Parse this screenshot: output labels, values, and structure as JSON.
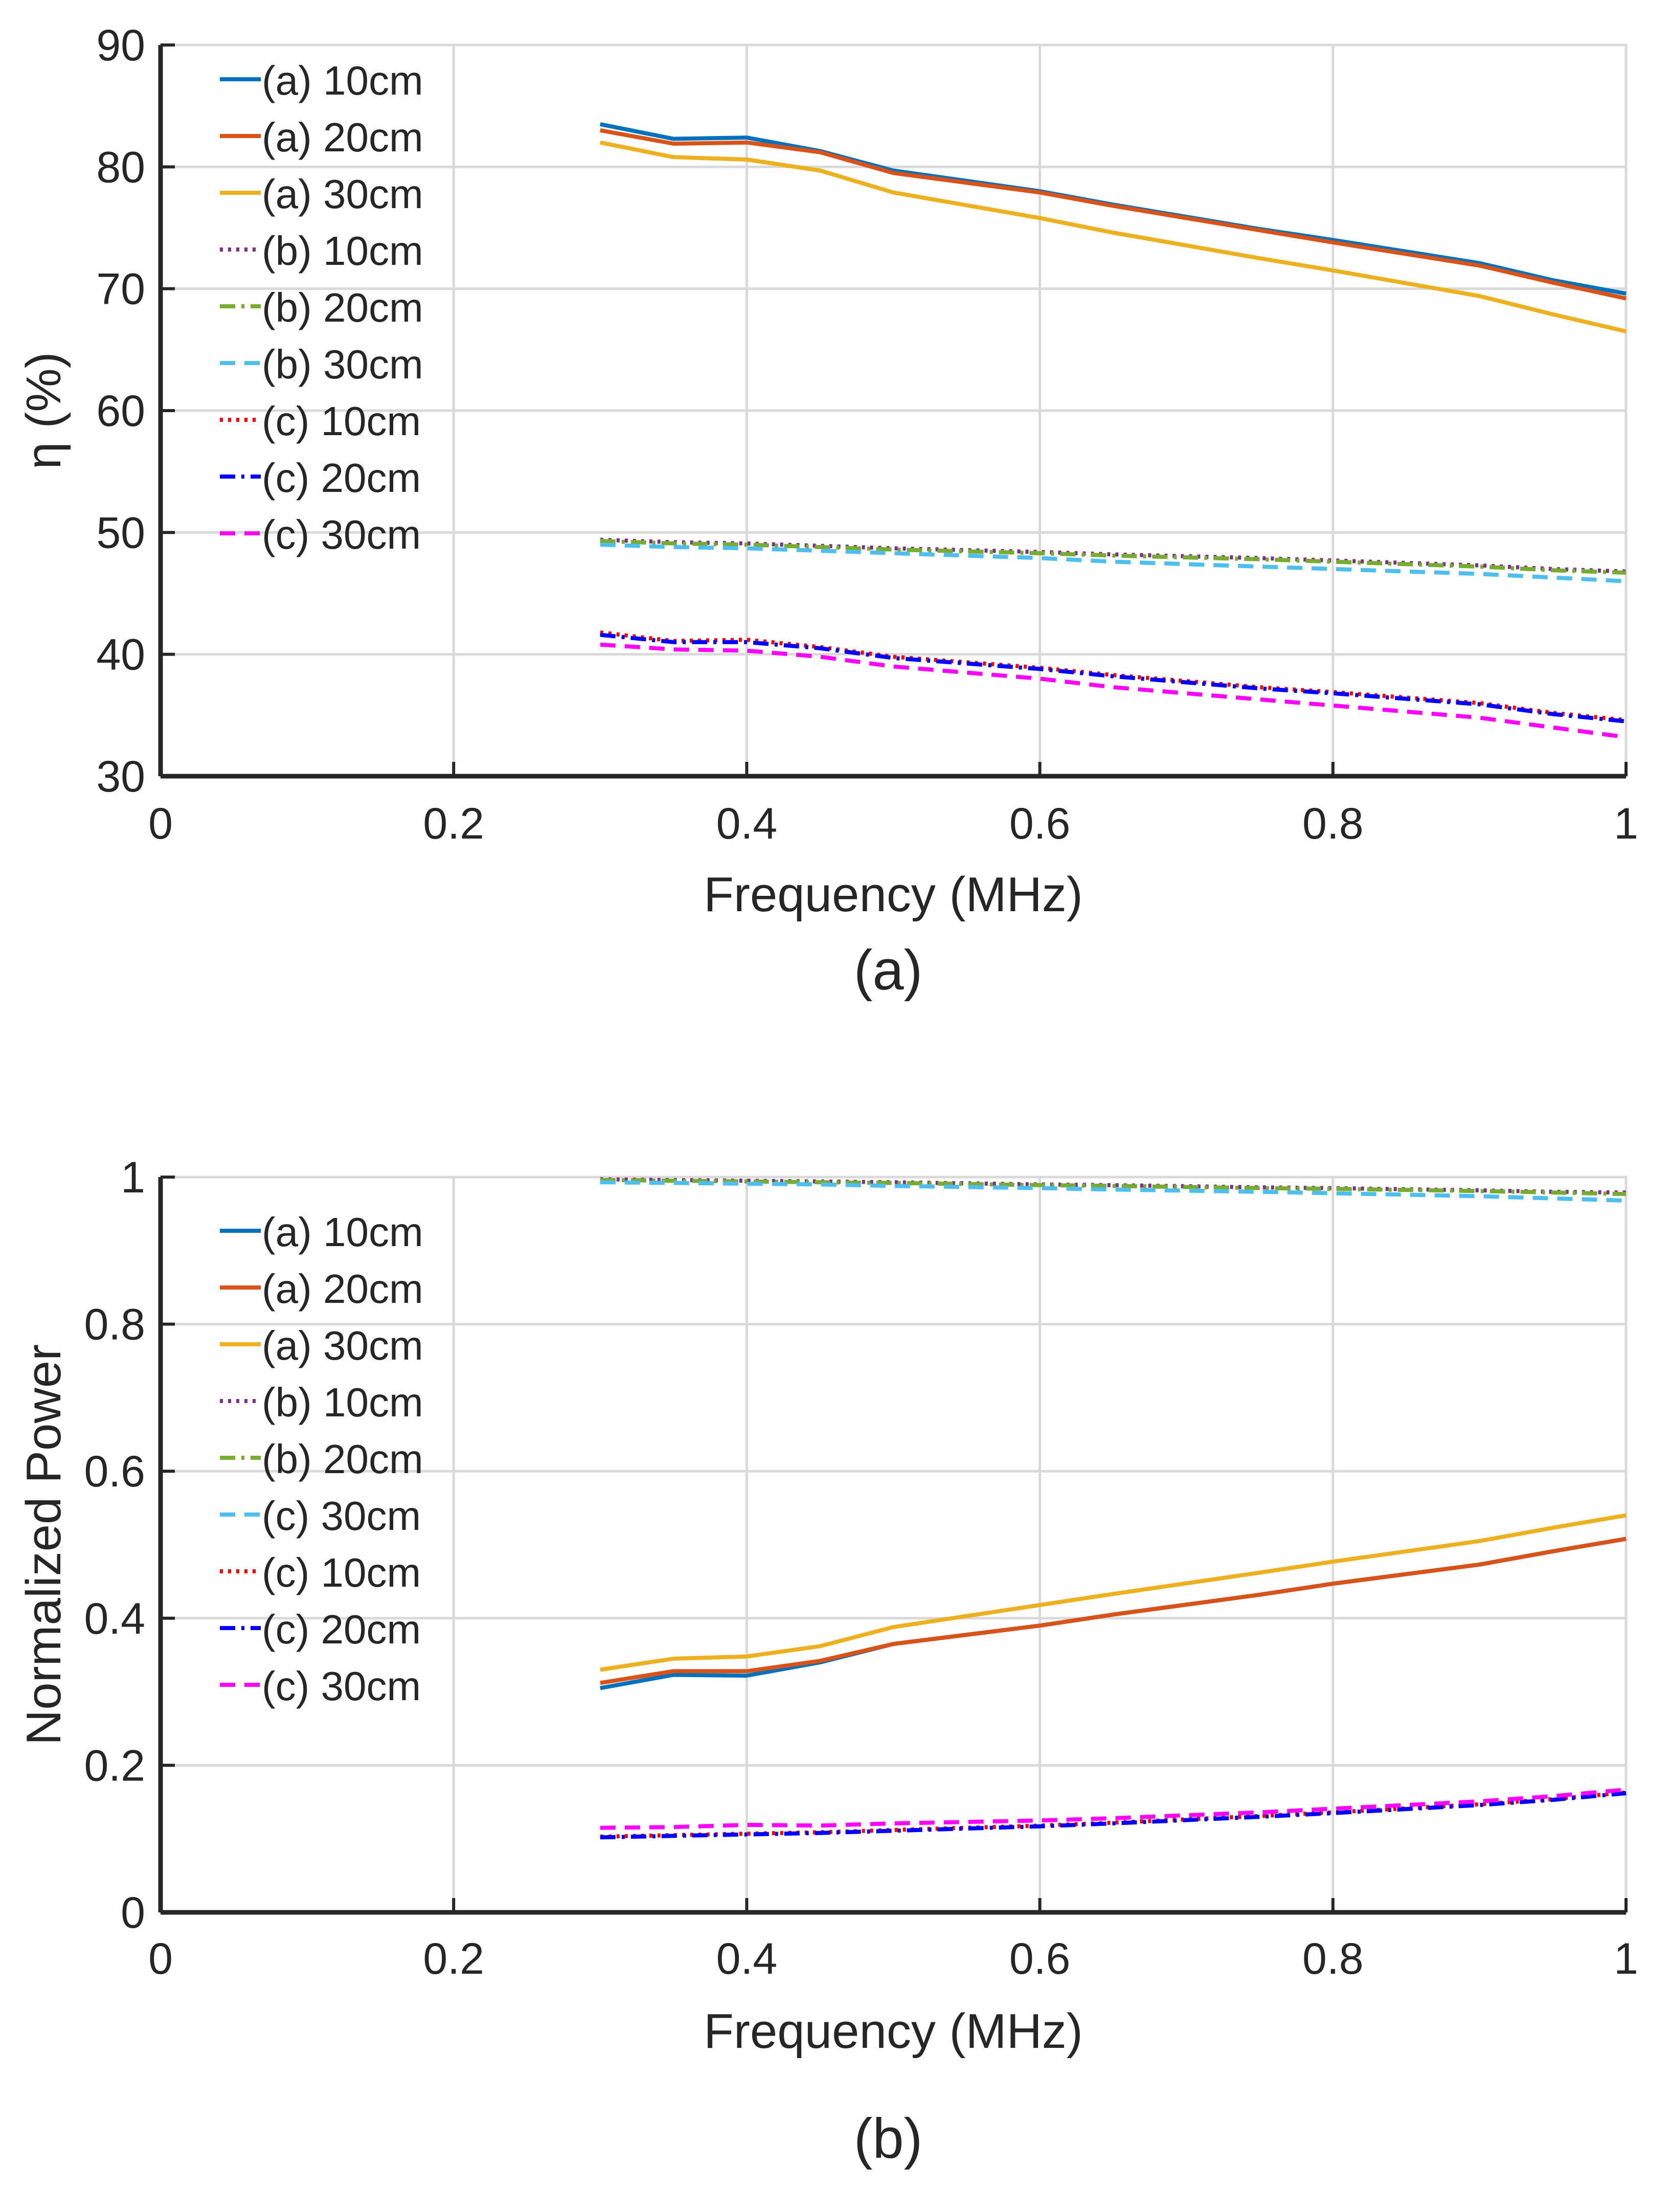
{
  "chart_data": [
    {
      "type": "line",
      "panel_label": "(a)",
      "xlabel": "Frequency (MHz)",
      "ylabel": "η (%)",
      "xlim": [
        0,
        1
      ],
      "ylim": [
        30,
        90
      ],
      "xticks": [
        "0",
        "0.2",
        "0.4",
        "0.6",
        "0.8",
        "1"
      ],
      "yticks": [
        "30",
        "40",
        "50",
        "60",
        "70",
        "80",
        "90"
      ],
      "grid": true,
      "legend_position": "top-left",
      "x": [
        0.3,
        0.35,
        0.4,
        0.45,
        0.5,
        0.6,
        0.65,
        0.75,
        0.8,
        0.9,
        0.95,
        1.0
      ],
      "series": [
        {
          "name": "(a) 10cm",
          "color": "#0072BD",
          "dash": "solid",
          "values": [
            83.5,
            82.3,
            82.4,
            81.3,
            79.7,
            78.0,
            76.9,
            74.9,
            74.0,
            72.1,
            70.7,
            69.6
          ]
        },
        {
          "name": " (a) 20cm",
          "color": "#D95319",
          "dash": "solid",
          "values": [
            83.0,
            81.9,
            82.0,
            81.2,
            79.5,
            77.9,
            76.8,
            74.8,
            73.8,
            71.9,
            70.5,
            69.2
          ]
        },
        {
          "name": "(a) 30cm",
          "color": "#EDB120",
          "dash": "solid",
          "values": [
            82.0,
            80.8,
            80.6,
            79.7,
            77.9,
            75.8,
            74.6,
            72.5,
            71.5,
            69.4,
            67.9,
            66.5
          ]
        },
        {
          "name": "(b) 10cm",
          "color": "#7E2F8E",
          "dash": "dot",
          "values": [
            49.4,
            49.2,
            49.1,
            48.9,
            48.7,
            48.4,
            48.2,
            47.9,
            47.7,
            47.3,
            47.0,
            46.8
          ]
        },
        {
          "name": " (b) 20cm",
          "color": "#77AC30",
          "dash": "dashdot",
          "values": [
            49.3,
            49.1,
            49.0,
            48.8,
            48.6,
            48.3,
            48.1,
            47.8,
            47.6,
            47.2,
            46.9,
            46.7
          ]
        },
        {
          "name": "(b) 30cm",
          "color": "#4DBEEE",
          "dash": "dash",
          "values": [
            49.0,
            48.8,
            48.7,
            48.5,
            48.3,
            47.9,
            47.6,
            47.2,
            47.0,
            46.6,
            46.3,
            46.0
          ]
        },
        {
          "name": "(c) 10cm",
          "color": "#FF0000",
          "dash": "dot",
          "values": [
            41.8,
            41.1,
            41.2,
            40.6,
            39.8,
            38.9,
            38.3,
            37.3,
            36.9,
            36.0,
            35.2,
            34.6
          ]
        },
        {
          "name": "(c) 20cm",
          "color": "#0000FF",
          "dash": "dashdot",
          "values": [
            41.6,
            41.0,
            41.0,
            40.5,
            39.7,
            38.8,
            38.2,
            37.2,
            36.8,
            35.9,
            35.1,
            34.5
          ]
        },
        {
          "name": "(c) 30cm",
          "color": "#FF00FF",
          "dash": "dash",
          "values": [
            40.8,
            40.4,
            40.3,
            39.8,
            39.0,
            38.0,
            37.3,
            36.3,
            35.8,
            34.8,
            34.0,
            33.2
          ]
        }
      ]
    },
    {
      "type": "line",
      "panel_label": "(b)",
      "xlabel": "Frequency (MHz)",
      "ylabel": "Normalized Power",
      "xlim": [
        0,
        1
      ],
      "ylim": [
        0,
        1
      ],
      "xticks": [
        "0",
        "0.2",
        "0.4",
        "0.6",
        "0.8",
        "1"
      ],
      "yticks": [
        "0",
        "0.2",
        "0.4",
        "0.6",
        "0.8",
        "1"
      ],
      "grid": true,
      "legend_position": "top-left",
      "x": [
        0.3,
        0.35,
        0.4,
        0.45,
        0.5,
        0.6,
        0.65,
        0.75,
        0.8,
        0.9,
        0.95,
        1.0
      ],
      "series": [
        {
          "name": "(a) 10cm",
          "color": "#0072BD",
          "dash": "solid",
          "values": [
            0.305,
            0.323,
            0.322,
            0.34,
            0.365,
            0.39,
            0.405,
            0.432,
            0.447,
            0.473,
            0.491,
            0.508
          ]
        },
        {
          "name": " (a) 20cm",
          "color": "#D95319",
          "dash": "solid",
          "values": [
            0.312,
            0.328,
            0.328,
            0.342,
            0.365,
            0.39,
            0.405,
            0.432,
            0.447,
            0.473,
            0.491,
            0.508
          ]
        },
        {
          "name": "(a) 30cm",
          "color": "#EDB120",
          "dash": "solid",
          "values": [
            0.33,
            0.345,
            0.348,
            0.362,
            0.388,
            0.418,
            0.433,
            0.462,
            0.477,
            0.505,
            0.523,
            0.54
          ]
        },
        {
          "name": "(b) 10cm",
          "color": "#7E2F8E",
          "dash": "dot",
          "values": [
            0.997,
            0.996,
            0.995,
            0.994,
            0.993,
            0.99,
            0.989,
            0.986,
            0.985,
            0.982,
            0.98,
            0.979
          ]
        },
        {
          "name": " (b) 20cm",
          "color": "#77AC30",
          "dash": "dashdot",
          "values": [
            0.996,
            0.995,
            0.994,
            0.993,
            0.992,
            0.989,
            0.988,
            0.985,
            0.984,
            0.981,
            0.979,
            0.977
          ]
        },
        {
          "name": "(c) 30cm",
          "color": "#4DBEEE",
          "dash": "dash",
          "values": [
            0.993,
            0.992,
            0.991,
            0.99,
            0.988,
            0.985,
            0.983,
            0.98,
            0.978,
            0.974,
            0.971,
            0.968
          ]
        },
        {
          "name": "(c) 10cm",
          "color": "#FF0000",
          "dash": "dot",
          "values": [
            0.103,
            0.105,
            0.107,
            0.109,
            0.112,
            0.118,
            0.122,
            0.131,
            0.136,
            0.147,
            0.154,
            0.163
          ]
        },
        {
          "name": " (c) 20cm",
          "color": "#0000FF",
          "dash": "dashdot",
          "values": [
            0.102,
            0.104,
            0.106,
            0.108,
            0.111,
            0.117,
            0.121,
            0.13,
            0.135,
            0.146,
            0.153,
            0.162
          ]
        },
        {
          "name": "(c) 30cm",
          "color": "#FF00FF",
          "dash": "dash",
          "values": [
            0.115,
            0.116,
            0.119,
            0.118,
            0.121,
            0.125,
            0.128,
            0.136,
            0.141,
            0.151,
            0.158,
            0.167
          ]
        }
      ]
    }
  ]
}
